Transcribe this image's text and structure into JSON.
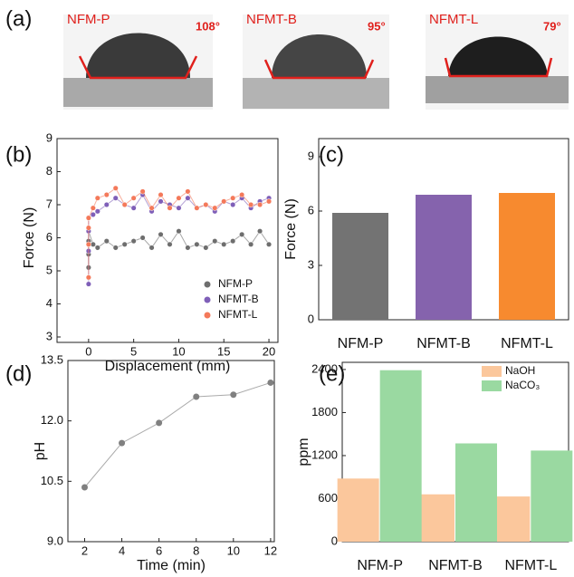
{
  "panel_a": {
    "panel": "(a)",
    "images": [
      {
        "label": "NFM-P",
        "angle": "108°"
      },
      {
        "label": "NFMT-B",
        "angle": "95°"
      },
      {
        "label": "NFMT-L",
        "angle": "79°"
      }
    ]
  },
  "chart_data": [
    {
      "type": "scatter",
      "panel": "(b)",
      "xlabel": "Displacement (mm)",
      "ylabel": "Force (N)",
      "x": [
        0,
        0,
        0,
        0,
        0.5,
        1,
        2,
        3,
        4,
        5,
        6,
        7,
        8,
        9,
        10,
        11,
        12,
        13,
        14,
        15,
        16,
        17,
        18,
        19,
        20
      ],
      "series": [
        {
          "name": "NFM-P",
          "color": "#6e6e6e",
          "values": [
            5.1,
            5.5,
            5.9,
            6.2,
            5.8,
            5.7,
            5.9,
            5.7,
            5.8,
            5.9,
            6.0,
            5.7,
            6.1,
            5.8,
            6.2,
            5.7,
            5.8,
            5.7,
            5.9,
            5.8,
            5.9,
            6.1,
            5.8,
            6.2,
            5.8
          ]
        },
        {
          "name": "NFMT-B",
          "color": "#7f5fb8",
          "values": [
            4.6,
            5.6,
            6.2,
            6.6,
            6.7,
            6.8,
            7.0,
            7.2,
            7.0,
            6.9,
            7.3,
            6.8,
            7.1,
            7.0,
            6.9,
            7.2,
            6.9,
            7.0,
            6.8,
            7.1,
            7.0,
            7.2,
            6.9,
            7.1,
            7.2
          ]
        },
        {
          "name": "NFMT-L",
          "color": "#f4795a",
          "values": [
            4.8,
            5.8,
            6.3,
            6.6,
            6.9,
            7.2,
            7.3,
            7.5,
            7.0,
            7.2,
            7.4,
            6.9,
            7.3,
            6.9,
            7.2,
            7.4,
            6.9,
            7.0,
            6.9,
            7.1,
            7.2,
            7.3,
            7.0,
            7.0,
            7.1
          ]
        }
      ],
      "xlim": [
        -3.5,
        21
      ],
      "xticks": [
        0,
        5,
        10,
        15,
        20
      ],
      "ylim": [
        3,
        9
      ],
      "yticks": [
        3,
        4,
        5,
        6,
        7,
        8,
        9
      ],
      "legend": "lower right"
    },
    {
      "type": "bar",
      "panel": "(c)",
      "ylabel": "Force (N)",
      "categories": [
        "NFM-P",
        "NFMT-B",
        "NFMT-L"
      ],
      "values": [
        5.9,
        6.9,
        7.0
      ],
      "colors": [
        "#737373",
        "#8563ad",
        "#f78a2f"
      ],
      "ylim": [
        0,
        10
      ],
      "yticks": [
        0,
        3,
        6,
        9
      ]
    },
    {
      "type": "line",
      "panel": "(d)",
      "xlabel": "Time (min)",
      "ylabel": "pH",
      "x": [
        2,
        4,
        6,
        8,
        10,
        12
      ],
      "values": [
        10.35,
        11.45,
        11.95,
        12.6,
        12.65,
        12.95
      ],
      "color": "#808080",
      "xlim": [
        1.1,
        12.2
      ],
      "xticks": [
        2,
        4,
        6,
        8,
        10,
        12
      ],
      "ylim": [
        9,
        13.5
      ],
      "yticks": [
        {
          "value": 9,
          "label": "9.0"
        },
        10.5,
        {
          "value": 12,
          "label": "12.0"
        },
        13.5
      ]
    },
    {
      "type": "grouped_bar",
      "panel": "(e)",
      "ylabel": "ppm",
      "categories": [
        "NFM-P",
        "NFMT-B",
        "NFMT-L"
      ],
      "series": [
        {
          "name": "NaOH",
          "color": "#fbc79c",
          "values": [
            880,
            660,
            630
          ]
        },
        {
          "name": "NaCO₃",
          "color": "#9ad9a1",
          "values": [
            2390,
            1370,
            1270
          ]
        }
      ],
      "ylim": [
        0,
        2500
      ],
      "yticks": [
        0,
        600,
        1200,
        1800,
        2400
      ],
      "legend": "upper right"
    }
  ]
}
